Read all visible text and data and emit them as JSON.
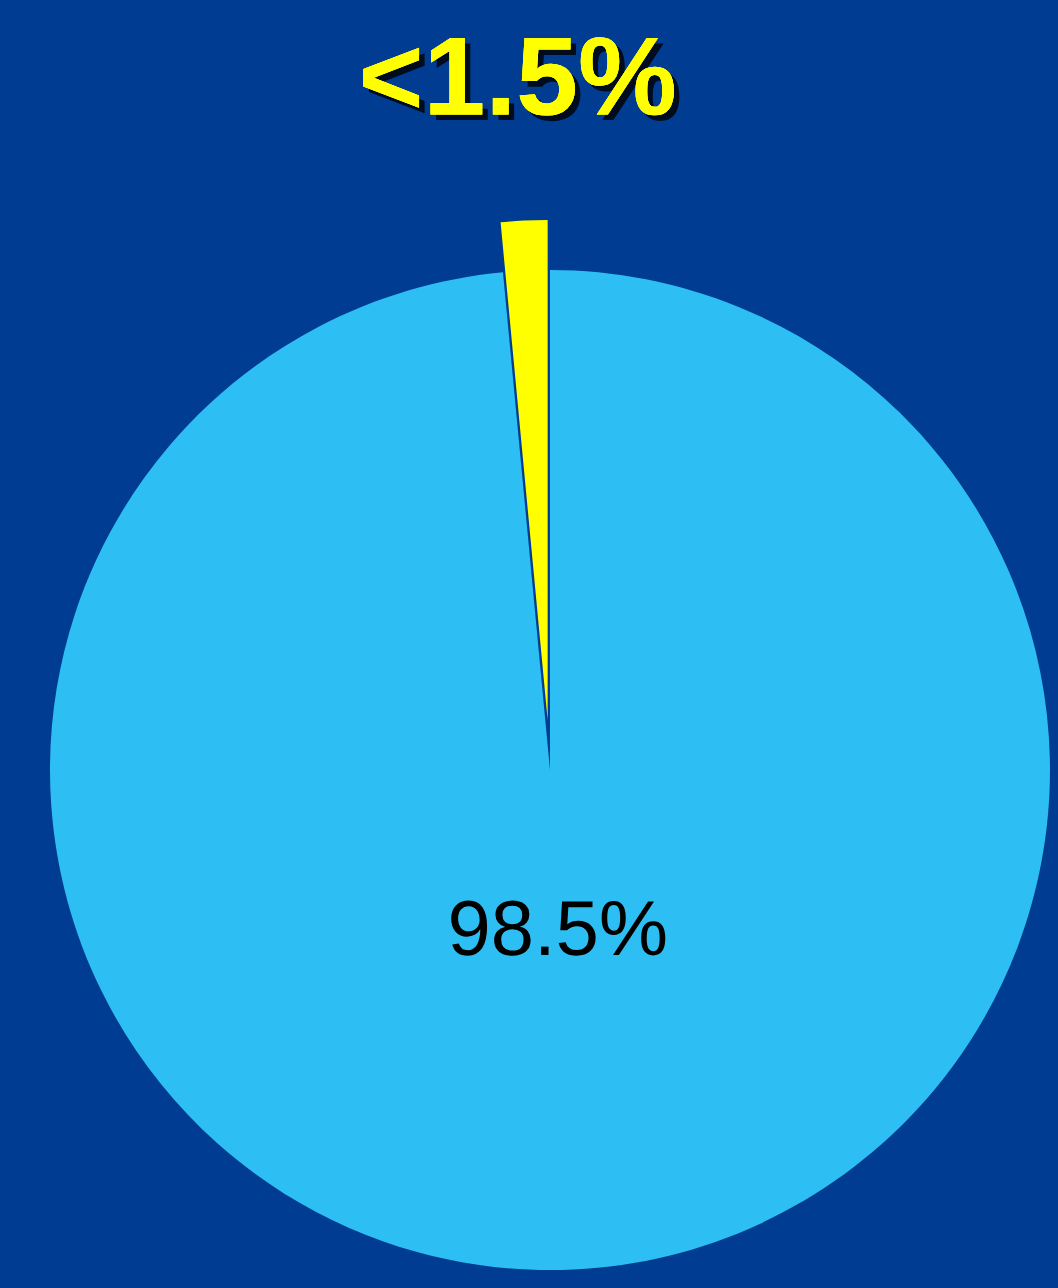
{
  "chart_data": {
    "type": "pie",
    "categories": [
      null,
      null
    ],
    "values": [
      98.5,
      1.5
    ],
    "colors": [
      "#2dbff3",
      "#ffff00"
    ],
    "value_labels": [
      "98.5%",
      "<1.5%"
    ]
  }
}
